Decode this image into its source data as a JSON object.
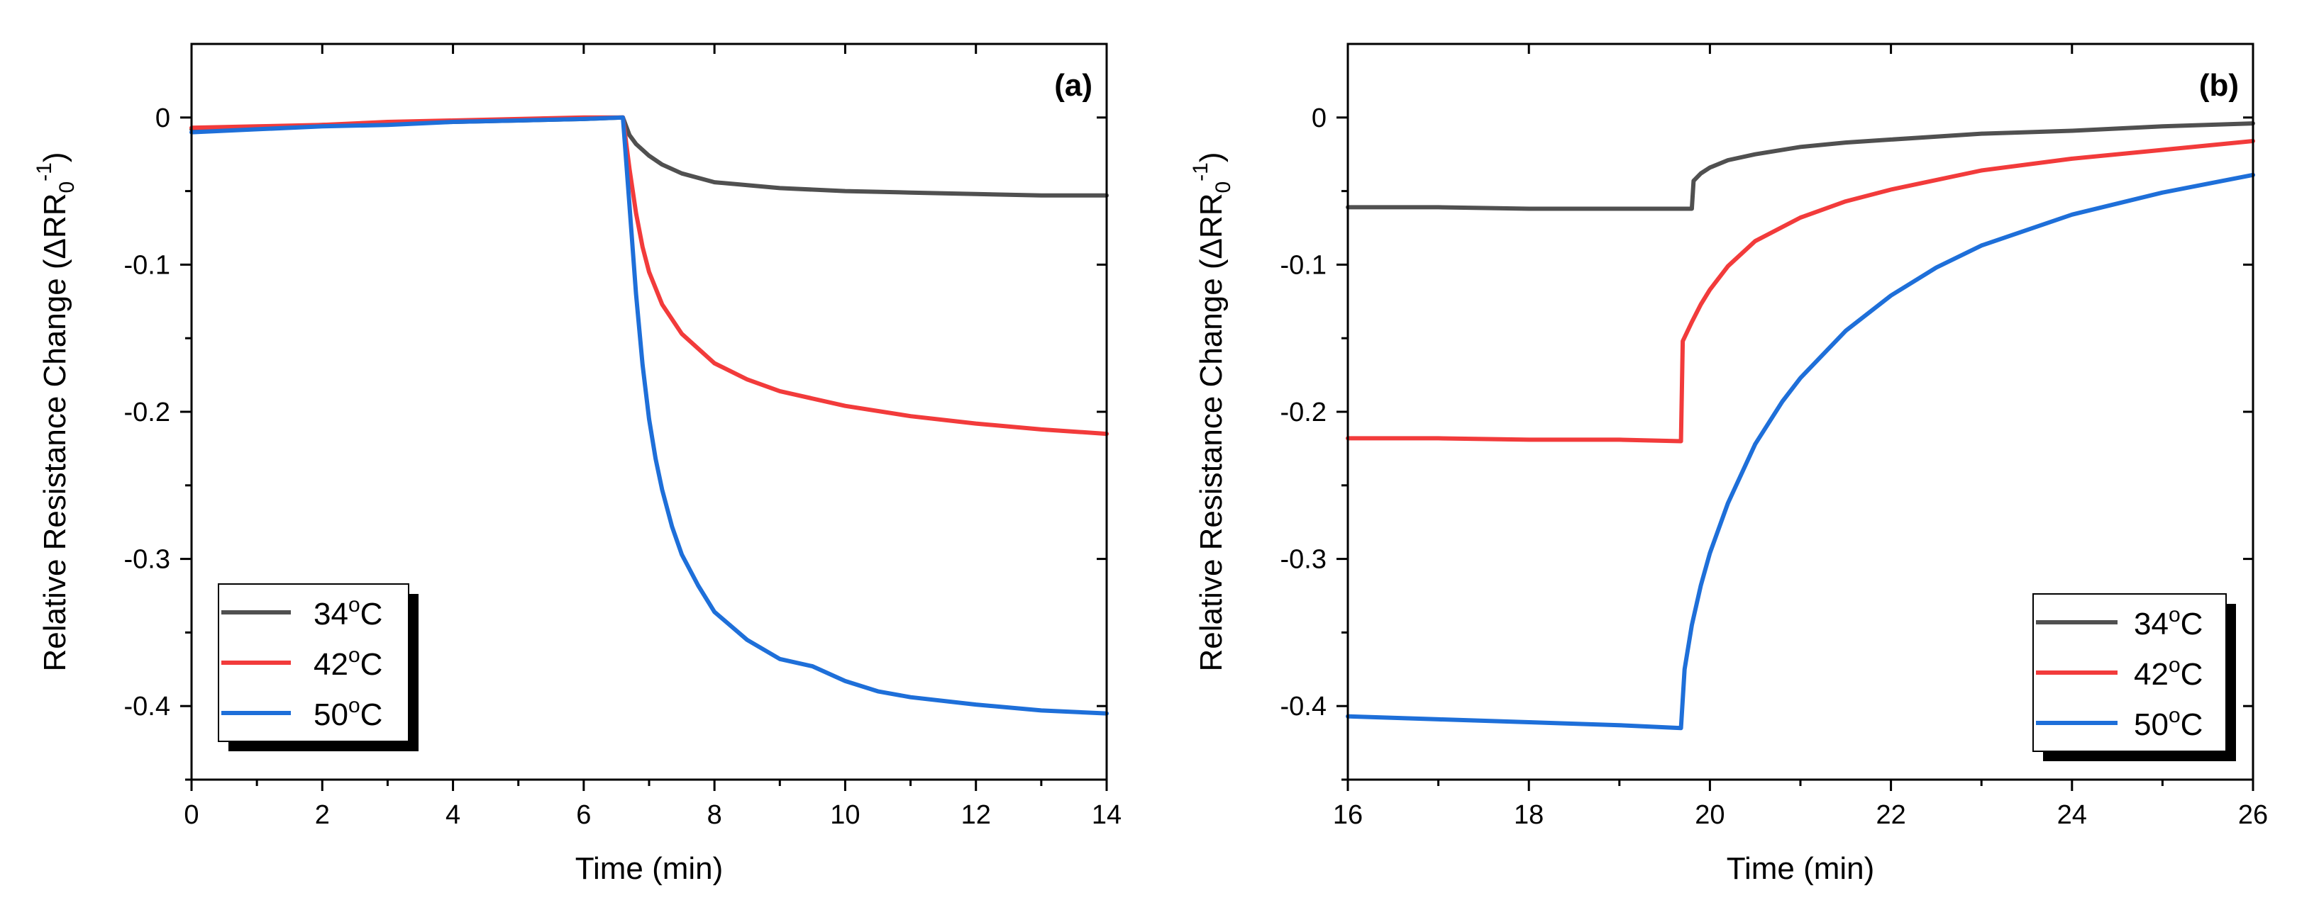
{
  "colors": {
    "s34": "#505050",
    "s42": "#f23b3b",
    "s50": "#1e6fd9",
    "axis": "#000000"
  },
  "chart_data": [
    {
      "type": "line",
      "panel_label": "(a)",
      "xlabel": "Time (min)",
      "ylabel": "Relative Resistance Change (ΔRR",
      "ylabel_sub": "0",
      "ylabel_sup": "-1",
      "ylabel_close": ")",
      "xlim": [
        0,
        14
      ],
      "ylim": [
        -0.45,
        0.05
      ],
      "xticks": [
        0,
        2,
        4,
        6,
        8,
        10,
        12,
        14
      ],
      "xtick_labels": [
        "0",
        "2",
        "4",
        "6",
        "8",
        "10",
        "12",
        "14"
      ],
      "yticks": [
        0,
        -0.1,
        -0.2,
        -0.3,
        -0.4
      ],
      "ytick_labels": [
        "0",
        "-0.1",
        "-0.2",
        "-0.3",
        "-0.4"
      ],
      "legend_position": "bottom-left",
      "series": [
        {
          "name": "34",
          "unit": "°C",
          "label_o": "o",
          "label_C": "C",
          "color": "#505050",
          "x": [
            0,
            1,
            2,
            3,
            4,
            5,
            6,
            6.6,
            6.7,
            6.8,
            7.0,
            7.2,
            7.5,
            8,
            9,
            10,
            11,
            12,
            13,
            14
          ],
          "y": [
            -0.008,
            -0.007,
            -0.005,
            -0.004,
            -0.003,
            -0.002,
            -0.001,
            0.0,
            -0.012,
            -0.018,
            -0.026,
            -0.032,
            -0.038,
            -0.044,
            -0.048,
            -0.05,
            -0.051,
            -0.052,
            -0.053,
            -0.053
          ]
        },
        {
          "name": "42",
          "unit": "°C",
          "label_o": "o",
          "label_C": "C",
          "color": "#f23b3b",
          "x": [
            0,
            1,
            2,
            3,
            4,
            5,
            6,
            6.6,
            6.7,
            6.8,
            6.9,
            7.0,
            7.2,
            7.5,
            8,
            8.5,
            9,
            10,
            11,
            12,
            13,
            14
          ],
          "y": [
            -0.007,
            -0.006,
            -0.005,
            -0.003,
            -0.002,
            -0.001,
            0.0,
            0.0,
            -0.035,
            -0.065,
            -0.088,
            -0.105,
            -0.127,
            -0.147,
            -0.167,
            -0.178,
            -0.186,
            -0.196,
            -0.203,
            -0.208,
            -0.212,
            -0.215
          ]
        },
        {
          "name": "50",
          "unit": "°C",
          "label_o": "o",
          "label_C": "C",
          "color": "#1e6fd9",
          "x": [
            0,
            1,
            2,
            3,
            4,
            5,
            6,
            6.6,
            6.7,
            6.8,
            6.9,
            7.0,
            7.1,
            7.2,
            7.35,
            7.5,
            7.75,
            8,
            8.5,
            9,
            9.5,
            10,
            10.5,
            11,
            12,
            13,
            14
          ],
          "y": [
            -0.01,
            -0.008,
            -0.006,
            -0.005,
            -0.003,
            -0.002,
            -0.001,
            0.0,
            -0.06,
            -0.12,
            -0.168,
            -0.205,
            -0.232,
            -0.253,
            -0.278,
            -0.297,
            -0.318,
            -0.336,
            -0.355,
            -0.368,
            -0.373,
            -0.383,
            -0.39,
            -0.394,
            -0.399,
            -0.403,
            -0.405
          ]
        }
      ]
    },
    {
      "type": "line",
      "panel_label": "(b)",
      "xlabel": "Time (min)",
      "ylabel": "Relative Resistance Change (ΔRR",
      "ylabel_sub": "0",
      "ylabel_sup": "-1",
      "ylabel_close": ")",
      "xlim": [
        16,
        26
      ],
      "ylim": [
        -0.45,
        0.05
      ],
      "xticks": [
        16,
        18,
        20,
        22,
        24,
        26
      ],
      "xtick_labels": [
        "16",
        "18",
        "20",
        "22",
        "24",
        "26"
      ],
      "yticks": [
        0,
        -0.1,
        -0.2,
        -0.3,
        -0.4
      ],
      "ytick_labels": [
        "0",
        "-0.1",
        "-0.2",
        "-0.3",
        "-0.4"
      ],
      "legend_position": "bottom-right",
      "series": [
        {
          "name": "34",
          "unit": "°C",
          "label_o": "o",
          "label_C": "C",
          "color": "#505050",
          "x": [
            16,
            17,
            18,
            19,
            19.8,
            19.82,
            19.9,
            20.0,
            20.2,
            20.5,
            21,
            21.5,
            22,
            23,
            24,
            25,
            26
          ],
          "y": [
            -0.061,
            -0.061,
            -0.062,
            -0.062,
            -0.062,
            -0.043,
            -0.038,
            -0.034,
            -0.029,
            -0.025,
            -0.02,
            -0.017,
            -0.015,
            -0.011,
            -0.009,
            -0.006,
            -0.004
          ]
        },
        {
          "name": "42",
          "unit": "°C",
          "label_o": "o",
          "label_C": "C",
          "color": "#f23b3b",
          "x": [
            16,
            17,
            18,
            19,
            19.68,
            19.7,
            19.8,
            19.9,
            20.0,
            20.2,
            20.5,
            21,
            21.5,
            22,
            23,
            24,
            25,
            26
          ],
          "y": [
            -0.218,
            -0.218,
            -0.219,
            -0.219,
            -0.22,
            -0.152,
            -0.139,
            -0.127,
            -0.117,
            -0.101,
            -0.084,
            -0.068,
            -0.057,
            -0.049,
            -0.036,
            -0.028,
            -0.022,
            -0.016
          ]
        },
        {
          "name": "50",
          "unit": "°C",
          "label_o": "o",
          "label_C": "C",
          "color": "#1e6fd9",
          "x": [
            16,
            17,
            18,
            19,
            19.68,
            19.72,
            19.8,
            19.9,
            20.0,
            20.2,
            20.5,
            20.8,
            21,
            21.5,
            22,
            22.5,
            23,
            24,
            25,
            26
          ],
          "y": [
            -0.407,
            -0.409,
            -0.411,
            -0.413,
            -0.415,
            -0.375,
            -0.345,
            -0.318,
            -0.296,
            -0.262,
            -0.222,
            -0.193,
            -0.177,
            -0.145,
            -0.121,
            -0.102,
            -0.087,
            -0.066,
            -0.051,
            -0.039
          ]
        }
      ]
    }
  ]
}
